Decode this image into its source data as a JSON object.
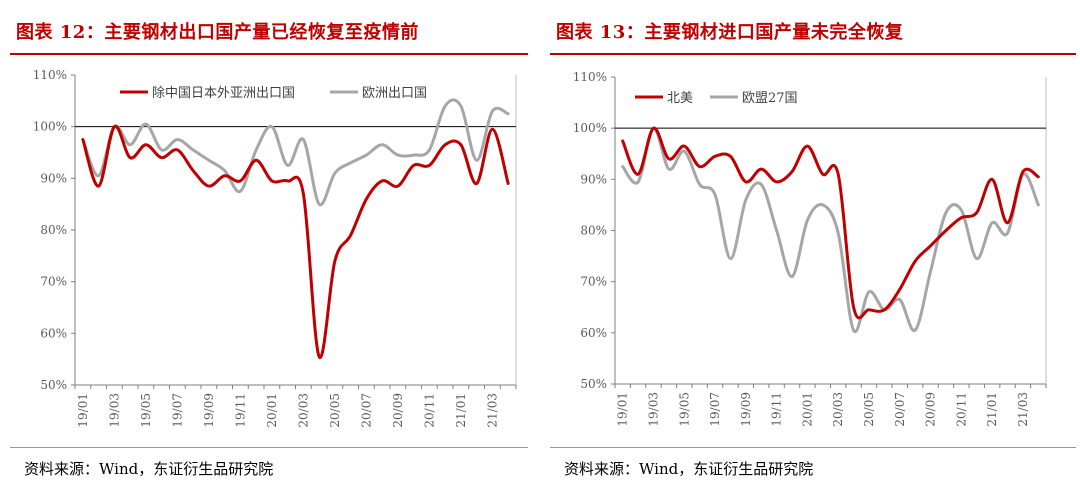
{
  "charts": [
    {
      "title": "图表 12：主要钢材出口国产量已经恢复至疫情前",
      "source": "资料来源：Wind，东证衍生品研究院"
    },
    {
      "title": "图表 13：主要钢材进口国产量未完全恢复",
      "source": "资料来源：Wind，东证衍生品研究院"
    }
  ],
  "colors": {
    "red": "#c00000",
    "gray": "#a6a6a6",
    "title_red": "#c00000"
  },
  "chart_data": [
    {
      "type": "line",
      "title": "",
      "xlabel": "",
      "ylabel": "",
      "ylim": [
        0.5,
        1.1
      ],
      "y_ticks": [
        "50%",
        "60%",
        "70%",
        "80%",
        "90%",
        "100%",
        "110%"
      ],
      "x_tick_labels": [
        "19/01",
        "19/03",
        "19/05",
        "19/07",
        "19/09",
        "19/11",
        "20/01",
        "20/03",
        "20/05",
        "20/07",
        "20/09",
        "20/11",
        "21/01",
        "21/03"
      ],
      "reference_line": 1.0,
      "grid": false,
      "legend_position": "top",
      "x": [
        "19/01",
        "19/02",
        "19/03",
        "19/04",
        "19/05",
        "19/06",
        "19/07",
        "19/08",
        "19/09",
        "19/10",
        "19/11",
        "19/12",
        "20/01",
        "20/02",
        "20/03",
        "20/04",
        "20/05",
        "20/06",
        "20/07",
        "20/08",
        "20/09",
        "20/10",
        "20/11",
        "20/12",
        "21/01",
        "21/02",
        "21/03",
        "21/04"
      ],
      "series": [
        {
          "name": "除中国日本外亚洲出口国",
          "color": "#c00000",
          "values": [
            0.975,
            0.885,
            1.0,
            0.94,
            0.965,
            0.94,
            0.955,
            0.915,
            0.885,
            0.905,
            0.895,
            0.935,
            0.895,
            0.895,
            0.87,
            0.555,
            0.74,
            0.79,
            0.86,
            0.895,
            0.885,
            0.925,
            0.925,
            0.965,
            0.965,
            0.89,
            0.995,
            0.89
          ]
        },
        {
          "name": "欧洲出口国",
          "color": "#a6a6a6",
          "values": [
            0.975,
            0.905,
            1.0,
            0.965,
            1.005,
            0.955,
            0.975,
            0.955,
            0.935,
            0.915,
            0.875,
            0.955,
            1.0,
            0.925,
            0.975,
            0.85,
            0.91,
            0.93,
            0.945,
            0.965,
            0.945,
            0.945,
            0.955,
            1.04,
            1.04,
            0.935,
            1.03,
            1.025
          ]
        }
      ]
    },
    {
      "type": "line",
      "title": "",
      "xlabel": "",
      "ylabel": "",
      "ylim": [
        0.5,
        1.1
      ],
      "y_ticks": [
        "50%",
        "60%",
        "70%",
        "80%",
        "90%",
        "100%",
        "110%"
      ],
      "x_tick_labels": [
        "19/01",
        "19/03",
        "19/05",
        "19/07",
        "19/09",
        "19/11",
        "20/01",
        "20/03",
        "20/05",
        "20/07",
        "20/09",
        "20/11",
        "21/01",
        "21/03"
      ],
      "reference_line": 1.0,
      "grid": false,
      "legend_position": "top-left",
      "x": [
        "19/01",
        "19/02",
        "19/03",
        "19/04",
        "19/05",
        "19/06",
        "19/07",
        "19/08",
        "19/09",
        "19/10",
        "19/11",
        "19/12",
        "20/01",
        "20/02",
        "20/03",
        "20/04",
        "20/05",
        "20/06",
        "20/07",
        "20/08",
        "20/09",
        "20/10",
        "20/11",
        "20/12",
        "21/01",
        "21/02",
        "21/03",
        "21/04"
      ],
      "series": [
        {
          "name": "北美",
          "color": "#c00000",
          "values": [
            0.975,
            0.91,
            1.0,
            0.94,
            0.965,
            0.925,
            0.945,
            0.945,
            0.895,
            0.92,
            0.895,
            0.915,
            0.965,
            0.91,
            0.91,
            0.65,
            0.645,
            0.645,
            0.685,
            0.74,
            0.77,
            0.8,
            0.825,
            0.835,
            0.9,
            0.815,
            0.915,
            0.905
          ]
        },
        {
          "name": "欧盟27国",
          "color": "#a6a6a6",
          "values": [
            0.925,
            0.895,
            1.0,
            0.92,
            0.955,
            0.89,
            0.87,
            0.745,
            0.86,
            0.89,
            0.8,
            0.71,
            0.82,
            0.85,
            0.795,
            0.605,
            0.68,
            0.645,
            0.665,
            0.605,
            0.72,
            0.835,
            0.84,
            0.745,
            0.815,
            0.795,
            0.91,
            0.85
          ]
        }
      ]
    }
  ]
}
